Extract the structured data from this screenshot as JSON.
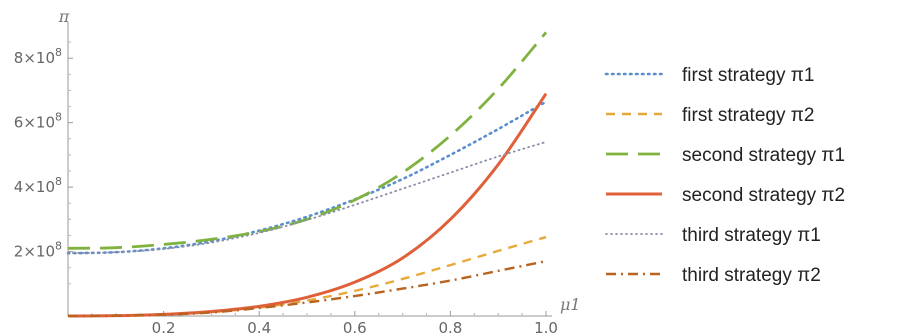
{
  "chart_data": {
    "type": "line",
    "title": "",
    "xlabel": "μ1",
    "ylabel": "π",
    "xlim": [
      0,
      1.0
    ],
    "ylim": [
      0,
      900000000
    ],
    "x_ticks": [
      {
        "value": 0.2,
        "label": "0.2"
      },
      {
        "value": 0.4,
        "label": "0.4"
      },
      {
        "value": 0.6,
        "label": "0.6"
      },
      {
        "value": 0.8,
        "label": "0.8"
      },
      {
        "value": 1.0,
        "label": "1.0"
      }
    ],
    "y_ticks": [
      {
        "value": 200000000,
        "label": "2 × 10^8"
      },
      {
        "value": 400000000,
        "label": "4 × 10^8"
      },
      {
        "value": 600000000,
        "label": "6 × 10^8"
      },
      {
        "value": 800000000,
        "label": "8 × 10^8"
      }
    ],
    "grid": false,
    "legend_position": "right",
    "x": [
      0,
      0.1,
      0.2,
      0.3,
      0.4,
      0.5,
      0.6,
      0.7,
      0.8,
      0.9,
      1.0
    ],
    "series": [
      {
        "name": "first strategy π1",
        "color": "#5b8fd0",
        "dash": "dot",
        "values": [
          195000000,
          198000000,
          210000000,
          232000000,
          265000000,
          308000000,
          362000000,
          425000000,
          500000000,
          580000000,
          665000000
        ]
      },
      {
        "name": "first strategy π2",
        "color": "#e8a93a",
        "dash": "dash",
        "values": [
          0,
          1000000,
          4000000,
          12000000,
          26000000,
          48000000,
          78000000,
          115000000,
          158000000,
          202000000,
          245000000
        ]
      },
      {
        "name": "second strategy π1",
        "color": "#7fb23f",
        "dash": "longdash",
        "values": [
          210000000,
          212000000,
          222000000,
          238000000,
          262000000,
          300000000,
          360000000,
          445000000,
          560000000,
          705000000,
          880000000
        ]
      },
      {
        "name": "second strategy π2",
        "color": "#e0603a",
        "dash": "solid",
        "values": [
          0,
          1000000,
          5000000,
          14000000,
          30000000,
          58000000,
          105000000,
          180000000,
          300000000,
          470000000,
          690000000
        ]
      },
      {
        "name": "third strategy π1",
        "color": "#8a8fa8",
        "dash": "fine-dot",
        "values": [
          195000000,
          198000000,
          208000000,
          228000000,
          258000000,
          298000000,
          345000000,
          395000000,
          445000000,
          495000000,
          540000000
        ]
      },
      {
        "name": "third strategy π2",
        "color": "#b8631f",
        "dash": "dashdot",
        "values": [
          0,
          1000000,
          4000000,
          11000000,
          25000000,
          42000000,
          62000000,
          85000000,
          110000000,
          140000000,
          170000000
        ]
      }
    ]
  }
}
